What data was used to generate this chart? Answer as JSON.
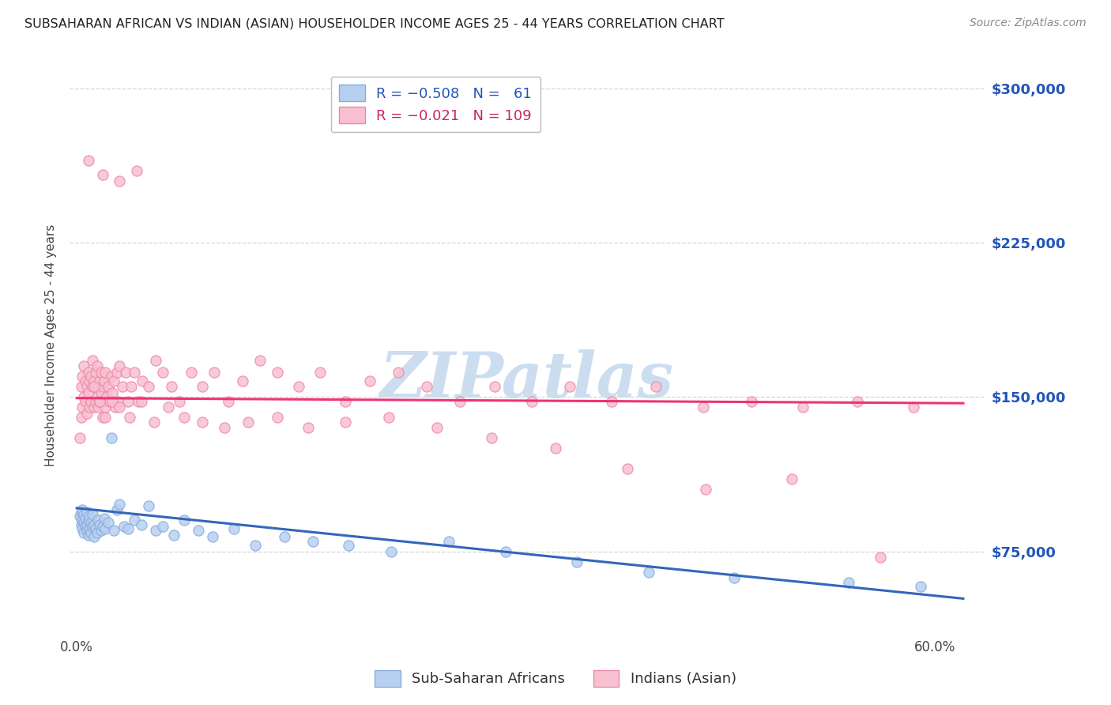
{
  "title": "SUBSAHARAN AFRICAN VS INDIAN (ASIAN) HOUSEHOLDER INCOME AGES 25 - 44 YEARS CORRELATION CHART",
  "source": "Source: ZipAtlas.com",
  "ylabel": "Householder Income Ages 25 - 44 years",
  "y_ticks": [
    75000,
    150000,
    225000,
    300000
  ],
  "y_tick_labels": [
    "$75,000",
    "$150,000",
    "$225,000",
    "$300,000"
  ],
  "xlim": [
    -0.005,
    0.635
  ],
  "ylim": [
    35000,
    315000
  ],
  "blue_color": "#88aadd",
  "pink_color": "#ee88aa",
  "blue_fill": "#b8d0f0",
  "pink_fill": "#f8c0d0",
  "blue_trend_color": "#3366bb",
  "pink_trend_color": "#ee3377",
  "watermark": "ZIPatlas",
  "watermark_color": "#ccddf0",
  "background_color": "#ffffff",
  "grid_color": "#cccccc",
  "blue_trend_x0": 0.0,
  "blue_trend_y0": 96000,
  "blue_trend_x1": 0.62,
  "blue_trend_y1": 52000,
  "pink_trend_x0": 0.0,
  "pink_trend_y0": 149500,
  "pink_trend_x1": 0.62,
  "pink_trend_y1": 147000,
  "blue_scatter_x": [
    0.002,
    0.003,
    0.003,
    0.004,
    0.004,
    0.004,
    0.005,
    0.005,
    0.005,
    0.006,
    0.006,
    0.007,
    0.007,
    0.007,
    0.008,
    0.008,
    0.009,
    0.009,
    0.01,
    0.01,
    0.011,
    0.011,
    0.012,
    0.012,
    0.013,
    0.014,
    0.015,
    0.016,
    0.017,
    0.018,
    0.019,
    0.02,
    0.022,
    0.024,
    0.026,
    0.028,
    0.03,
    0.033,
    0.036,
    0.04,
    0.045,
    0.05,
    0.055,
    0.06,
    0.068,
    0.075,
    0.085,
    0.095,
    0.11,
    0.125,
    0.145,
    0.165,
    0.19,
    0.22,
    0.26,
    0.3,
    0.35,
    0.4,
    0.46,
    0.54,
    0.59
  ],
  "blue_scatter_y": [
    92000,
    88000,
    94000,
    86000,
    90000,
    95000,
    84000,
    89000,
    93000,
    87000,
    91000,
    85000,
    88000,
    94000,
    83000,
    90000,
    86000,
    92000,
    84000,
    89000,
    87000,
    93000,
    82000,
    88000,
    86000,
    84000,
    90000,
    88000,
    85000,
    87000,
    91000,
    86000,
    89000,
    130000,
    85000,
    95000,
    98000,
    87000,
    86000,
    90000,
    88000,
    97000,
    85000,
    87000,
    83000,
    90000,
    85000,
    82000,
    86000,
    78000,
    82000,
    80000,
    78000,
    75000,
    80000,
    75000,
    70000,
    65000,
    62000,
    60000,
    58000
  ],
  "pink_scatter_x": [
    0.002,
    0.003,
    0.003,
    0.004,
    0.004,
    0.005,
    0.005,
    0.006,
    0.006,
    0.007,
    0.007,
    0.008,
    0.008,
    0.009,
    0.009,
    0.01,
    0.01,
    0.011,
    0.011,
    0.012,
    0.012,
    0.013,
    0.013,
    0.014,
    0.014,
    0.015,
    0.015,
    0.016,
    0.016,
    0.017,
    0.017,
    0.018,
    0.018,
    0.019,
    0.019,
    0.02,
    0.02,
    0.021,
    0.022,
    0.023,
    0.024,
    0.025,
    0.026,
    0.027,
    0.028,
    0.029,
    0.03,
    0.032,
    0.034,
    0.036,
    0.038,
    0.04,
    0.043,
    0.046,
    0.05,
    0.055,
    0.06,
    0.066,
    0.072,
    0.08,
    0.088,
    0.096,
    0.106,
    0.116,
    0.128,
    0.14,
    0.155,
    0.17,
    0.188,
    0.205,
    0.225,
    0.245,
    0.268,
    0.292,
    0.318,
    0.345,
    0.374,
    0.405,
    0.438,
    0.472,
    0.508,
    0.546,
    0.585,
    0.012,
    0.016,
    0.02,
    0.025,
    0.03,
    0.037,
    0.045,
    0.054,
    0.064,
    0.075,
    0.088,
    0.103,
    0.12,
    0.14,
    0.162,
    0.188,
    0.218,
    0.252,
    0.29,
    0.335,
    0.385,
    0.44,
    0.5,
    0.562,
    0.008,
    0.018,
    0.03,
    0.042
  ],
  "pink_scatter_y": [
    130000,
    140000,
    155000,
    145000,
    160000,
    150000,
    165000,
    148000,
    158000,
    142000,
    155000,
    152000,
    162000,
    145000,
    158000,
    148000,
    160000,
    155000,
    168000,
    145000,
    158000,
    148000,
    162000,
    150000,
    165000,
    145000,
    155000,
    148000,
    158000,
    152000,
    162000,
    140000,
    155000,
    148000,
    158000,
    145000,
    162000,
    150000,
    155000,
    148000,
    160000,
    152000,
    158000,
    145000,
    162000,
    148000,
    165000,
    155000,
    162000,
    148000,
    155000,
    162000,
    148000,
    158000,
    155000,
    168000,
    162000,
    155000,
    148000,
    162000,
    155000,
    162000,
    148000,
    158000,
    168000,
    162000,
    155000,
    162000,
    148000,
    158000,
    162000,
    155000,
    148000,
    155000,
    148000,
    155000,
    148000,
    155000,
    145000,
    148000,
    145000,
    148000,
    145000,
    155000,
    148000,
    140000,
    148000,
    145000,
    140000,
    148000,
    138000,
    145000,
    140000,
    138000,
    135000,
    138000,
    140000,
    135000,
    138000,
    140000,
    135000,
    130000,
    125000,
    115000,
    105000,
    110000,
    72000,
    265000,
    258000,
    255000,
    260000
  ]
}
